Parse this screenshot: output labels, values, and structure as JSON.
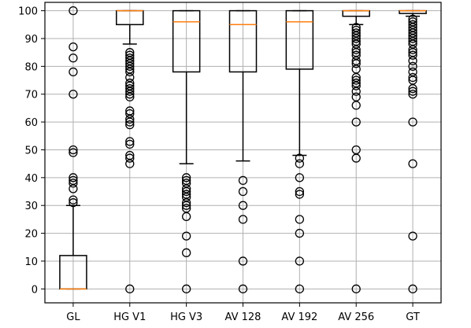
{
  "chart_data": {
    "type": "box",
    "title": "",
    "xlabel": "",
    "ylabel": "",
    "ylim": [
      -5,
      103
    ],
    "grid": true,
    "yticks": [
      0,
      10,
      20,
      30,
      40,
      50,
      60,
      70,
      80,
      90,
      100
    ],
    "colors": {
      "box": "#000000",
      "median": "#ff7f0e",
      "grid": "#b0b0b0"
    },
    "categories": [
      "GL",
      "HG V1",
      "HG V3",
      "AV 128",
      "AV 192",
      "AV 256",
      "GT"
    ],
    "boxes": [
      {
        "label": "GL",
        "whisker_low": 0,
        "q1": 0,
        "median": 0,
        "q3": 12,
        "whisker_high": 30,
        "outliers": [
          31,
          32,
          36,
          38,
          39,
          40,
          49,
          50,
          70,
          78,
          83,
          87,
          100
        ]
      },
      {
        "label": "HG V1",
        "whisker_low": 88,
        "q1": 95,
        "median": 100,
        "q3": 100,
        "whisker_high": 100,
        "outliers": [
          0,
          45,
          47,
          48,
          52,
          53,
          59,
          60,
          61,
          63,
          64,
          69,
          70,
          71,
          72,
          73,
          74,
          76,
          78,
          79,
          80,
          81,
          82,
          83,
          84,
          85
        ]
      },
      {
        "label": "HG V3",
        "whisker_low": 45,
        "q1": 78,
        "median": 96,
        "q3": 100,
        "whisker_high": 100,
        "outliers": [
          0,
          13,
          19,
          26,
          29,
          30,
          31,
          33,
          34,
          35,
          36,
          38,
          39,
          40
        ]
      },
      {
        "label": "AV 128",
        "whisker_low": 46,
        "q1": 78,
        "median": 95,
        "q3": 100,
        "whisker_high": 100,
        "outliers": [
          0,
          10,
          25,
          30,
          35,
          39
        ]
      },
      {
        "label": "AV 192",
        "whisker_low": 48,
        "q1": 79,
        "median": 96,
        "q3": 100,
        "whisker_high": 100,
        "outliers": [
          0,
          10,
          20,
          25,
          34,
          35,
          40,
          45,
          47
        ]
      },
      {
        "label": "AV 256",
        "whisker_low": 95,
        "q1": 98,
        "median": 100,
        "q3": 100,
        "whisker_high": 100,
        "outliers": [
          0,
          47,
          50,
          60,
          66,
          69,
          71,
          73,
          74,
          75,
          76,
          79,
          81,
          82,
          84,
          85,
          86,
          88,
          89,
          90,
          91,
          92,
          93,
          94
        ]
      },
      {
        "label": "GT",
        "whisker_low": 98,
        "q1": 99,
        "median": 100,
        "q3": 100,
        "whisker_high": 100,
        "outliers": [
          0,
          19,
          45,
          60,
          70,
          71,
          72,
          75,
          76,
          78,
          80,
          82,
          84,
          85,
          86,
          88,
          89,
          90,
          91,
          92,
          93,
          94,
          95,
          96,
          97
        ]
      }
    ]
  }
}
